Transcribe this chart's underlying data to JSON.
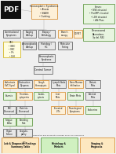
{
  "bg_color": "#f0f0f0",
  "page_color": "#ffffff",
  "pdf_bg": "#1a1a1a",
  "pdf_text_color": "#ffffff",
  "colors": {
    "orange_border": "#d4821a",
    "orange_fill": "#fdf0d8",
    "green_border": "#4a8a2a",
    "green_fill": "#e8f5e0",
    "gray_border": "#999999",
    "gray_fill": "#f5f5f5",
    "dark_border": "#555555",
    "dark_fill": "#e8e8e8",
    "line_color": "#aaaaaa"
  },
  "note": "All coordinates in axes fraction (0-1), origin bottom-left"
}
